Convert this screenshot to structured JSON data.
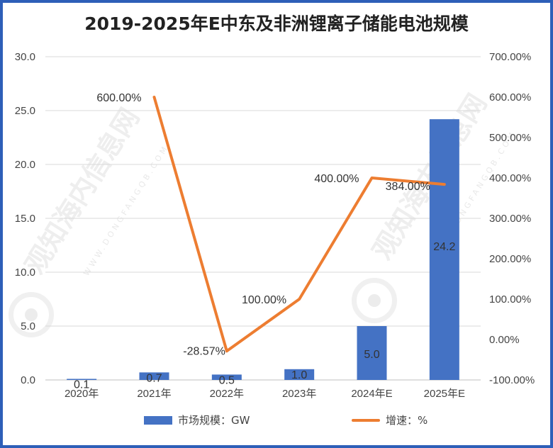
{
  "chart_data": {
    "type": "bar",
    "title": "2019-2025年E中东及非洲锂离子储能电池规模",
    "categories": [
      "2020年",
      "2021年",
      "2022年",
      "2023年",
      "2024年E",
      "2025年E"
    ],
    "series": [
      {
        "name": "市场规模：GW",
        "type": "bar",
        "axis": "left",
        "color": "#4472c4",
        "values": [
          0.1,
          0.7,
          0.5,
          1.0,
          5.0,
          24.2
        ],
        "labels": [
          "0.1",
          "0.7",
          "0.5",
          "1.0",
          "5.0",
          "24.2"
        ]
      },
      {
        "name": "增速：%",
        "type": "line",
        "axis": "right",
        "color": "#ed7d31",
        "values": [
          null,
          600.0,
          -28.57,
          100.0,
          400.0,
          384.0
        ],
        "labels": [
          "",
          "600.00%",
          "-28.57%",
          "100.00%",
          "400.00%",
          "384.00%"
        ]
      }
    ],
    "y_left": {
      "min": 0,
      "max": 30,
      "ticks": [
        "0.0",
        "5.0",
        "10.0",
        "15.0",
        "20.0",
        "25.0",
        "30.0"
      ]
    },
    "y_right": {
      "min": -100,
      "max": 700,
      "ticks": [
        "-100.00%",
        "0.00%",
        "100.00%",
        "200.00%",
        "300.00%",
        "400.00%",
        "500.00%",
        "600.00%",
        "700.00%"
      ]
    },
    "grid": true,
    "legend_position": "bottom"
  },
  "watermark": {
    "text": "观知海内信息网",
    "sub": "WWW.DONGFANGQB.COM"
  }
}
